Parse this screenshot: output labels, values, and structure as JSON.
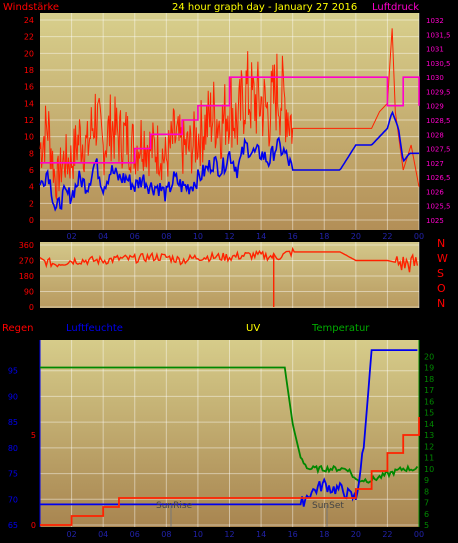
{
  "top_chart": {
    "left_label": "Windstärke",
    "center_label": "24 hour graph day - January 27 2016",
    "right_label": "Luftdruck",
    "wind_ticks": [
      "24",
      "22",
      "20",
      "18",
      "16",
      "14",
      "12",
      "10",
      "8",
      "6",
      "4",
      "2",
      "0"
    ],
    "pressure_ticks": [
      "1032",
      "1031,5",
      "1031",
      "1030,5",
      "1030",
      "1029,5",
      "1029",
      "1028,5",
      "1028",
      "1027,5",
      "1027",
      "1026,5",
      "1026",
      "1025,5",
      "1025"
    ],
    "hour_ticks": [
      "02",
      "04",
      "06",
      "08",
      "10",
      "12",
      "14",
      "16",
      "18",
      "20",
      "22",
      "00"
    ],
    "colors": {
      "gust": "#ff2200",
      "wind": "#0000ee",
      "pressure": "#ff00cc",
      "label_left": "#ff0000",
      "label_center": "#ffff00",
      "label_right": "#ff00cc"
    }
  },
  "dir_chart": {
    "ticks": [
      "360",
      "270",
      "180",
      "90",
      "0"
    ],
    "compass": [
      "N",
      "W",
      "S",
      "O",
      "N"
    ],
    "color": "#ff2200"
  },
  "bottom_chart": {
    "labels": {
      "rain": "Regen",
      "humidity": "Luftfeuchte",
      "uv": "UV",
      "temperature": "Temperatur"
    },
    "humidity_ticks": [
      "95",
      "90",
      "85",
      "80",
      "75",
      "70",
      "65"
    ],
    "rain_ticks": [
      "5",
      "0"
    ],
    "temp_ticks": [
      "20",
      "19",
      "18",
      "17",
      "16",
      "15",
      "14",
      "13",
      "12",
      "11",
      "10",
      "9",
      "8",
      "7",
      "6",
      "5"
    ],
    "hour_ticks": [
      "02",
      "04",
      "06",
      "08",
      "10",
      "12",
      "14",
      "16",
      "18",
      "20",
      "22",
      "00"
    ],
    "sunrise_label": "SunRise",
    "sunset_label": "SunSet",
    "colors": {
      "rain": "#ff2200",
      "humidity": "#0000ee",
      "uv": "#ffff00",
      "temperature": "#008800",
      "label_rain": "#ff0000",
      "label_humidity": "#0000ee",
      "label_uv": "#ffff00",
      "label_temp": "#00aa00"
    }
  },
  "chart_data": [
    {
      "type": "line",
      "x_unit": "hour",
      "xlim": [
        0,
        24
      ],
      "ylim": [
        0,
        24
      ],
      "y2lim": [
        1025,
        1032
      ],
      "series": [
        {
          "name": "Windstärke",
          "axis": "left",
          "x": [
            0,
            0.5,
            1,
            1.5,
            2,
            2.5,
            3,
            3.5,
            4,
            4.5,
            5,
            5.5,
            6,
            6.5,
            7,
            7.5,
            8,
            8.5,
            9,
            9.5,
            10,
            10.5,
            11,
            11.5,
            12,
            12.5,
            13,
            13.5,
            14,
            14.5,
            15,
            15.5,
            16,
            17,
            18,
            19,
            20,
            21,
            22,
            22.3,
            22.7,
            23,
            23.4,
            24
          ],
          "values": [
            4,
            6,
            1,
            3,
            3,
            5,
            4,
            7,
            4,
            6,
            5,
            5,
            4,
            5,
            4,
            4,
            3,
            5,
            4,
            4,
            5,
            6,
            7,
            6,
            8,
            6,
            9,
            8,
            8,
            7,
            9,
            8,
            6,
            6,
            6,
            6,
            9,
            9,
            11,
            13,
            11,
            7,
            8,
            8
          ]
        },
        {
          "name": "Luftdruck",
          "axis": "right",
          "x": [
            0,
            1,
            2,
            3,
            4,
            5,
            6,
            7,
            8,
            9,
            10,
            11,
            12,
            13,
            14,
            15,
            16,
            17,
            18,
            19,
            20,
            21,
            22,
            23,
            24
          ],
          "values": [
            1027,
            1027,
            1027,
            1027,
            1027,
            1027,
            1027.5,
            1028,
            1028,
            1028.5,
            1029,
            1029,
            1030,
            1030,
            1030,
            1030,
            1030,
            1030,
            1030,
            1030,
            1030,
            1030,
            1029,
            1030,
            1029
          ]
        }
      ]
    },
    {
      "type": "line",
      "x_unit": "hour",
      "xlim": [
        0,
        24
      ],
      "ylim": [
        0,
        360
      ],
      "series": [
        {
          "name": "direction",
          "x": [
            0,
            1,
            2,
            3,
            4,
            5,
            6,
            7,
            8,
            9,
            10,
            11,
            12,
            13,
            14,
            15,
            16,
            17,
            18,
            19,
            20,
            21,
            22,
            23,
            24
          ],
          "values": [
            270,
            250,
            270,
            270,
            270,
            280,
            280,
            290,
            290,
            270,
            290,
            290,
            290,
            300,
            300,
            290,
            320,
            320,
            320,
            320,
            270,
            270,
            270,
            250,
            250
          ]
        }
      ]
    },
    {
      "type": "line",
      "x_unit": "hour",
      "xlim": [
        0,
        24
      ],
      "ylim": [
        65,
        100
      ],
      "y2lim": [
        5,
        21
      ],
      "series": [
        {
          "name": "Luftfeuchte",
          "axis": "left",
          "x": [
            0,
            16.5,
            17,
            17.5,
            18,
            18.5,
            19,
            19.5,
            20,
            20.5,
            21,
            22,
            23,
            24
          ],
          "values": [
            69,
            69,
            71,
            72,
            73,
            72,
            72,
            71,
            70,
            80,
            99,
            99,
            99,
            99
          ]
        },
        {
          "name": "Temperatur",
          "axis": "right",
          "x": [
            0,
            15.5,
            16,
            16.5,
            17,
            18,
            19,
            19.5,
            20,
            20.5,
            21,
            22,
            23,
            24
          ],
          "values": [
            19,
            19,
            14,
            11,
            10,
            10,
            10,
            10,
            9,
            9,
            9,
            9.5,
            10,
            10
          ]
        },
        {
          "name": "Regen",
          "axis": "rain",
          "x": [
            0,
            1,
            2,
            3,
            4,
            5,
            6,
            10,
            14,
            18,
            20,
            21,
            22,
            23,
            24
          ],
          "values": [
            0,
            0,
            0.5,
            0.5,
            1,
            1.5,
            1.5,
            1.5,
            1.5,
            1.5,
            2,
            3,
            4,
            5,
            6
          ]
        }
      ]
    }
  ]
}
